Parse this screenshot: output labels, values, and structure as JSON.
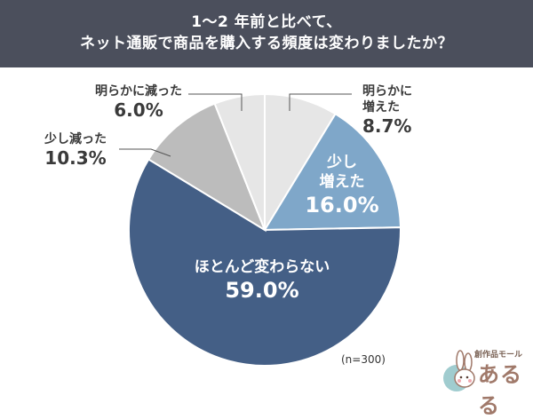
{
  "header": {
    "title_line1": "1～2 年前と比べて、",
    "title_line2": "ネット通販で商品を購入する頻度は変わりましたか？"
  },
  "chart_data": {
    "type": "pie",
    "slices": [
      {
        "label_lines": [
          "明らかに",
          "増えた"
        ],
        "value": 8.7,
        "display": "8.7%",
        "color": "#e6e6e6"
      },
      {
        "label_lines": [
          "少し",
          "増えた"
        ],
        "value": 16.0,
        "display": "16.0%",
        "color": "#7fa7c9"
      },
      {
        "label_lines": [
          "ほとんど変わらない"
        ],
        "value": 59.0,
        "display": "59.0%",
        "color": "#445f86"
      },
      {
        "label_lines": [
          "少し減った"
        ],
        "value": 10.3,
        "display": "10.3%",
        "color": "#bcbcbc"
      },
      {
        "label_lines": [
          "明らかに減った"
        ],
        "value": 6.0,
        "display": "6.0%",
        "color": "#e6e6e6"
      }
    ],
    "start": "12 o'clock",
    "direction": "clockwise"
  },
  "note": "(n=300)",
  "logo": {
    "sub": "創作品モール",
    "main": "あるる",
    "icon": "rabbit-mascot-icon"
  }
}
